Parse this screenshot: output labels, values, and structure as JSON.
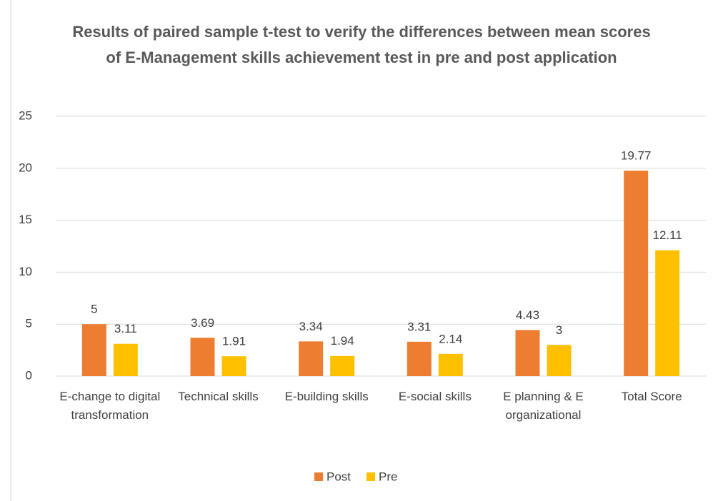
{
  "chart_data": {
    "type": "bar",
    "title": "Results of paired sample t-test to verify the differences between mean scores of E-Management skills achievement test in pre and post application",
    "categories": [
      "E-change to digital transformation",
      "Technical skills",
      "E-building skills",
      "E-social skills",
      "E planning & E organizational",
      "Total Score"
    ],
    "series": [
      {
        "name": "Post",
        "color": "#ED7D31",
        "values": [
          5,
          3.69,
          3.34,
          3.31,
          4.43,
          19.77
        ]
      },
      {
        "name": "Pre",
        "color": "#FFC000",
        "values": [
          3.11,
          1.91,
          1.94,
          2.14,
          3,
          12.11
        ]
      }
    ],
    "ylim": [
      0,
      25
    ],
    "yticks": [
      0,
      5,
      10,
      15,
      20,
      25
    ],
    "grid": true,
    "legend": "bottom"
  }
}
